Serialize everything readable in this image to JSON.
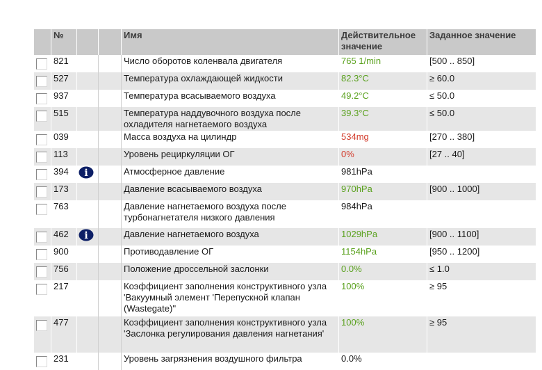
{
  "table": {
    "headers": {
      "number": "№",
      "name": "Имя",
      "actual": "Действительное значение",
      "target": "Заданное значение"
    },
    "rows": [
      {
        "id": "821",
        "name": "Число оборотов коленвала двигателя",
        "actual": "765 1/min",
        "actual_color": "#5aa11e",
        "target": "[500 .. 850]",
        "info": false
      },
      {
        "id": "527",
        "name": "Температура охлаждающей жидкости",
        "actual": "82.3°C",
        "actual_color": "#5aa11e",
        "target": "≥ 60.0",
        "info": false
      },
      {
        "id": "937",
        "name": "Температура всасываемого воздуха",
        "actual": "49.2°C",
        "actual_color": "#5aa11e",
        "target": "≤ 50.0",
        "info": false
      },
      {
        "id": "515",
        "name": "Температура наддувочного воздуха после охладителя нагнетаемого воздуха",
        "actual": "39.3°C",
        "actual_color": "#5aa11e",
        "target": "≤ 50.0",
        "info": false
      },
      {
        "id": "039",
        "name": "Масса воздуха на цилиндр",
        "actual": "534mg",
        "actual_color": "#d23a2a",
        "target": "[270 .. 380]",
        "info": false
      },
      {
        "id": "113",
        "name": "Уровень рециркуляции ОГ",
        "actual": "0%",
        "actual_color": "#d23a2a",
        "target": "[27 .. 40]",
        "info": false
      },
      {
        "id": "394",
        "name": "Атмосферное давление",
        "actual": "981hPa",
        "actual_color": "#1a1a1a",
        "target": "",
        "info": true
      },
      {
        "id": "173",
        "name": "Давление всасываемого воздуха",
        "actual": "970hPa",
        "actual_color": "#5aa11e",
        "target": "[900 .. 1000]",
        "info": false
      },
      {
        "id": "763",
        "name": "Давление нагнетаемого воздуха после турбонагнетателя низкого давления",
        "actual": "984hPa",
        "actual_color": "#1a1a1a",
        "target": "",
        "info": false
      },
      {
        "id": "462",
        "name": "Давление нагнетаемого воздуха",
        "actual": "1029hPa",
        "actual_color": "#5aa11e",
        "target": "[900 .. 1100]",
        "info": true
      },
      {
        "id": "900",
        "name": "Противодавление ОГ",
        "actual": "1154hPa",
        "actual_color": "#5aa11e",
        "target": "[950 .. 1200]",
        "info": false
      },
      {
        "id": "756",
        "name": "Положение дроссельной заслонки",
        "actual": "0.0%",
        "actual_color": "#5aa11e",
        "target": "≤ 1.0",
        "info": false
      },
      {
        "id": "217",
        "name": "Коэффициент заполнения конструктивного узла 'Вакуумный элемент 'Перепускной клапан (Wastegate)''",
        "actual": "100%",
        "actual_color": "#5aa11e",
        "target": "≥ 95",
        "info": false
      },
      {
        "id": "477",
        "name": "Коэффициент заполнения конструктивного узла 'Заслонка регулирования давления нагнетания'",
        "actual": "100%",
        "actual_color": "#5aa11e",
        "target": "≥ 95",
        "info": false
      },
      {
        "id": "231",
        "name": "Уровень загрязнения воздушного фильтра",
        "actual": "0.0%",
        "actual_color": "#1a1a1a",
        "target": "",
        "info": false
      }
    ]
  }
}
